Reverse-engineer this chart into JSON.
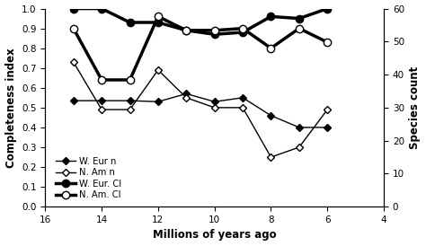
{
  "W_Eur_n_x": [
    15,
    14,
    13,
    12,
    11,
    10,
    9,
    8,
    7,
    6
  ],
  "W_Eur_n_y": [
    0.535,
    0.535,
    0.535,
    0.53,
    0.57,
    0.53,
    0.55,
    0.46,
    0.4,
    0.4
  ],
  "N_Am_n_x": [
    15,
    14,
    13,
    12,
    11,
    10,
    9,
    8,
    7,
    6
  ],
  "N_Am_n_y": [
    0.73,
    0.49,
    0.49,
    0.69,
    0.55,
    0.5,
    0.5,
    0.25,
    0.3,
    0.49
  ],
  "W_Eur_CI_x": [
    15,
    14,
    13,
    12,
    11,
    10,
    9,
    8,
    7,
    6
  ],
  "W_Eur_CI_y": [
    1.0,
    1.0,
    0.93,
    0.93,
    0.89,
    0.87,
    0.88,
    0.96,
    0.95,
    1.0
  ],
  "N_Am_CI_x": [
    15,
    14,
    13,
    12,
    11,
    10,
    9,
    8,
    7,
    6
  ],
  "N_Am_CI_y": [
    0.9,
    0.64,
    0.64,
    0.96,
    0.89,
    0.89,
    0.9,
    0.8,
    0.9,
    0.83
  ],
  "xlabel": "Millions of years ago",
  "ylabel_left": "Completeness index",
  "ylabel_right": "Species count",
  "xlim": [
    16,
    4
  ],
  "ylim_left": [
    0,
    1.0
  ],
  "ylim_right": [
    0,
    60
  ],
  "xticks": [
    16,
    14,
    12,
    10,
    8,
    6,
    4
  ],
  "yticks_left": [
    0,
    0.1,
    0.2,
    0.3,
    0.4,
    0.5,
    0.6,
    0.7,
    0.8,
    0.9,
    1
  ],
  "yticks_right": [
    0,
    10,
    20,
    30,
    40,
    50,
    60
  ],
  "legend_labels": [
    "W. Eur n",
    "N. Am n",
    "W. Eur. CI",
    "N. Am. CI"
  ]
}
